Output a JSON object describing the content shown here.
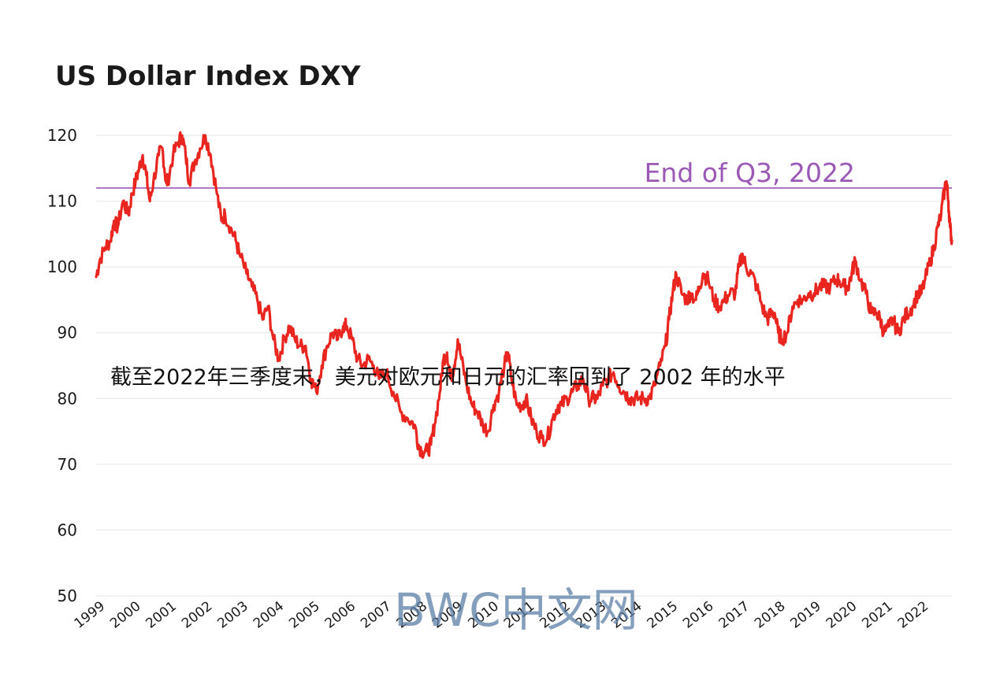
{
  "chart_data": {
    "type": "line",
    "title": "US Dollar Index DXY",
    "xlabel": "",
    "ylabel": "",
    "ylim": [
      50,
      120
    ],
    "xlim": [
      1999.0,
      2022.9
    ],
    "grid": true,
    "x_ticks": [
      "1999",
      "2000",
      "2001",
      "2002",
      "2003",
      "2004",
      "2005",
      "2006",
      "2007",
      "2008",
      "2009",
      "2010",
      "2011",
      "2012",
      "2013",
      "2014",
      "2015",
      "2016",
      "2017",
      "2018",
      "2019",
      "2020",
      "2021",
      "2022"
    ],
    "y_ticks": [
      50,
      60,
      70,
      80,
      90,
      100,
      110,
      120
    ],
    "reference_line": {
      "value": 112,
      "label": "End of Q3, 2022",
      "color": "#9b59b6"
    },
    "series": [
      {
        "color": "#e8261f",
        "points": [
          [
            1999.0,
            98.5
          ],
          [
            1999.1,
            101
          ],
          [
            1999.25,
            103
          ],
          [
            1999.4,
            104
          ],
          [
            1999.5,
            107
          ],
          [
            1999.6,
            106
          ],
          [
            1999.75,
            110
          ],
          [
            1999.9,
            108
          ],
          [
            2000.0,
            111
          ],
          [
            2000.1,
            113
          ],
          [
            2000.2,
            115
          ],
          [
            2000.3,
            117
          ],
          [
            2000.4,
            114
          ],
          [
            2000.5,
            110
          ],
          [
            2000.6,
            113
          ],
          [
            2000.75,
            117
          ],
          [
            2000.85,
            118
          ],
          [
            2000.95,
            113
          ],
          [
            2001.0,
            113
          ],
          [
            2001.15,
            117
          ],
          [
            2001.3,
            119
          ],
          [
            2001.4,
            120
          ],
          [
            2001.5,
            117
          ],
          [
            2001.6,
            113
          ],
          [
            2001.75,
            116
          ],
          [
            2001.9,
            118
          ],
          [
            2002.05,
            120
          ],
          [
            2002.2,
            117
          ],
          [
            2002.35,
            112
          ],
          [
            2002.5,
            107
          ],
          [
            2002.6,
            108
          ],
          [
            2002.75,
            106
          ],
          [
            2002.9,
            104
          ],
          [
            2003.0,
            102
          ],
          [
            2003.2,
            99
          ],
          [
            2003.35,
            97
          ],
          [
            2003.5,
            95
          ],
          [
            2003.65,
            92
          ],
          [
            2003.8,
            94
          ],
          [
            2003.95,
            89
          ],
          [
            2004.1,
            86
          ],
          [
            2004.25,
            89
          ],
          [
            2004.4,
            91
          ],
          [
            2004.55,
            89
          ],
          [
            2004.7,
            88
          ],
          [
            2004.85,
            88
          ],
          [
            2005.0,
            83
          ],
          [
            2005.15,
            81
          ],
          [
            2005.3,
            85
          ],
          [
            2005.45,
            88
          ],
          [
            2005.6,
            90
          ],
          [
            2005.75,
            89
          ],
          [
            2005.9,
            91
          ],
          [
            2006.0,
            91
          ],
          [
            2006.15,
            89
          ],
          [
            2006.3,
            86
          ],
          [
            2006.45,
            85
          ],
          [
            2006.6,
            86
          ],
          [
            2006.75,
            85
          ],
          [
            2006.9,
            83
          ],
          [
            2007.1,
            84
          ],
          [
            2007.3,
            81
          ],
          [
            2007.5,
            78
          ],
          [
            2007.7,
            77
          ],
          [
            2007.9,
            76
          ],
          [
            2008.0,
            73
          ],
          [
            2008.1,
            72
          ],
          [
            2008.25,
            72
          ],
          [
            2008.35,
            73
          ],
          [
            2008.45,
            76
          ],
          [
            2008.6,
            81
          ],
          [
            2008.7,
            86
          ],
          [
            2008.8,
            87
          ],
          [
            2008.9,
            83
          ],
          [
            2009.0,
            85
          ],
          [
            2009.1,
            89
          ],
          [
            2009.2,
            86
          ],
          [
            2009.35,
            82
          ],
          [
            2009.5,
            79
          ],
          [
            2009.65,
            78
          ],
          [
            2009.8,
            76
          ],
          [
            2009.95,
            75
          ],
          [
            2010.1,
            79
          ],
          [
            2010.25,
            81
          ],
          [
            2010.4,
            85
          ],
          [
            2010.5,
            87
          ],
          [
            2010.6,
            83
          ],
          [
            2010.75,
            79
          ],
          [
            2010.9,
            79
          ],
          [
            2011.0,
            80
          ],
          [
            2011.15,
            77
          ],
          [
            2011.3,
            75
          ],
          [
            2011.45,
            74
          ],
          [
            2011.6,
            74
          ],
          [
            2011.75,
            77
          ],
          [
            2011.9,
            79
          ],
          [
            2012.0,
            79
          ],
          [
            2012.15,
            80
          ],
          [
            2012.3,
            81
          ],
          [
            2012.45,
            82
          ],
          [
            2012.6,
            83
          ],
          [
            2012.75,
            80
          ],
          [
            2012.9,
            80
          ],
          [
            2013.0,
            80
          ],
          [
            2013.15,
            82
          ],
          [
            2013.3,
            83
          ],
          [
            2013.45,
            84
          ],
          [
            2013.6,
            82
          ],
          [
            2013.75,
            81
          ],
          [
            2013.9,
            80
          ],
          [
            2014.0,
            80
          ],
          [
            2014.15,
            80
          ],
          [
            2014.3,
            80
          ],
          [
            2014.45,
            80
          ],
          [
            2014.6,
            82
          ],
          [
            2014.75,
            85
          ],
          [
            2014.9,
            88
          ],
          [
            2015.0,
            92
          ],
          [
            2015.1,
            96
          ],
          [
            2015.2,
            99
          ],
          [
            2015.35,
            96
          ],
          [
            2015.5,
            95
          ],
          [
            2015.6,
            96
          ],
          [
            2015.75,
            95
          ],
          [
            2015.85,
            97
          ],
          [
            2015.95,
            99
          ],
          [
            2016.1,
            98
          ],
          [
            2016.25,
            95
          ],
          [
            2016.4,
            94
          ],
          [
            2016.55,
            95
          ],
          [
            2016.7,
            96
          ],
          [
            2016.85,
            96
          ],
          [
            2016.95,
            100
          ],
          [
            2017.05,
            102
          ],
          [
            2017.15,
            100
          ],
          [
            2017.3,
            99
          ],
          [
            2017.45,
            97
          ],
          [
            2017.6,
            94
          ],
          [
            2017.75,
            92
          ],
          [
            2017.85,
            93
          ],
          [
            2017.95,
            93
          ],
          [
            2018.05,
            90
          ],
          [
            2018.15,
            89
          ],
          [
            2018.3,
            90
          ],
          [
            2018.45,
            94
          ],
          [
            2018.6,
            95
          ],
          [
            2018.75,
            95
          ],
          [
            2018.9,
            96
          ],
          [
            2019.05,
            96
          ],
          [
            2019.2,
            97
          ],
          [
            2019.35,
            97
          ],
          [
            2019.5,
            97
          ],
          [
            2019.65,
            98
          ],
          [
            2019.75,
            98
          ],
          [
            2019.9,
            97
          ],
          [
            2020.0,
            97
          ],
          [
            2020.1,
            99
          ],
          [
            2020.2,
            101
          ],
          [
            2020.35,
            98
          ],
          [
            2020.5,
            96
          ],
          [
            2020.65,
            93
          ],
          [
            2020.8,
            93
          ],
          [
            2020.9,
            92
          ],
          [
            2021.0,
            90
          ],
          [
            2021.15,
            91
          ],
          [
            2021.25,
            92
          ],
          [
            2021.4,
            90
          ],
          [
            2021.55,
            92
          ],
          [
            2021.65,
            93
          ],
          [
            2021.8,
            94
          ],
          [
            2021.95,
            96
          ],
          [
            2022.05,
            96
          ],
          [
            2022.15,
            98
          ],
          [
            2022.3,
            101
          ],
          [
            2022.4,
            103
          ],
          [
            2022.5,
            106
          ],
          [
            2022.6,
            108
          ],
          [
            2022.7,
            112
          ],
          [
            2022.75,
            113
          ],
          [
            2022.8,
            110
          ],
          [
            2022.85,
            106
          ],
          [
            2022.9,
            104
          ]
        ]
      }
    ]
  },
  "caption": "截至2022年三季度末，美元对欧元和日元的汇率回到了 2002 年的水平",
  "watermark": "BWC中文网"
}
